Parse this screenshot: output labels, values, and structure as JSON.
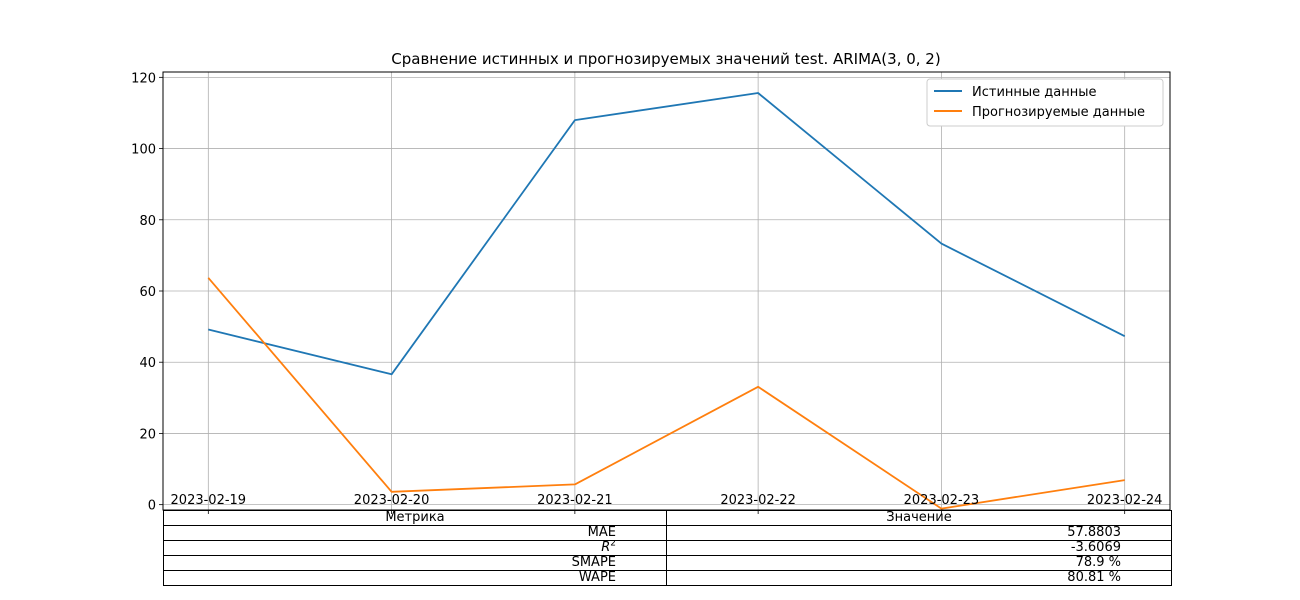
{
  "chart_data": {
    "type": "line",
    "title": "Сравнение истинных и прогнозируемых значений test. ARIMA(3, 0, 2)",
    "categories": [
      "2023-02-19",
      "2023-02-20",
      "2023-02-21",
      "2023-02-22",
      "2023-02-23",
      "2023-02-24"
    ],
    "series": [
      {
        "name": "Истинные данные",
        "color": "#1f77b4",
        "values": [
          49.2,
          36.6,
          108.0,
          115.6,
          73.3,
          47.3
        ]
      },
      {
        "name": "Прогнозируемые данные",
        "color": "#ff7f0e",
        "values": [
          63.7,
          3.6,
          5.7,
          33.1,
          -1.1,
          6.9
        ]
      }
    ],
    "yticks": [
      0,
      20,
      40,
      60,
      80,
      100,
      120
    ],
    "ylim": [
      -1.5,
      121.5
    ],
    "grid": true,
    "legend_position": "top-right"
  },
  "table": {
    "headers": [
      "Метрика",
      "Значение"
    ],
    "rows": [
      {
        "metric": "MAE",
        "value": "57.8803"
      },
      {
        "metric": "R",
        "metric_sup": "2",
        "value": "-3.6069"
      },
      {
        "metric": "SMAPE",
        "value": "78.9 %"
      },
      {
        "metric": "WAPE",
        "value": "80.81 %"
      }
    ]
  }
}
